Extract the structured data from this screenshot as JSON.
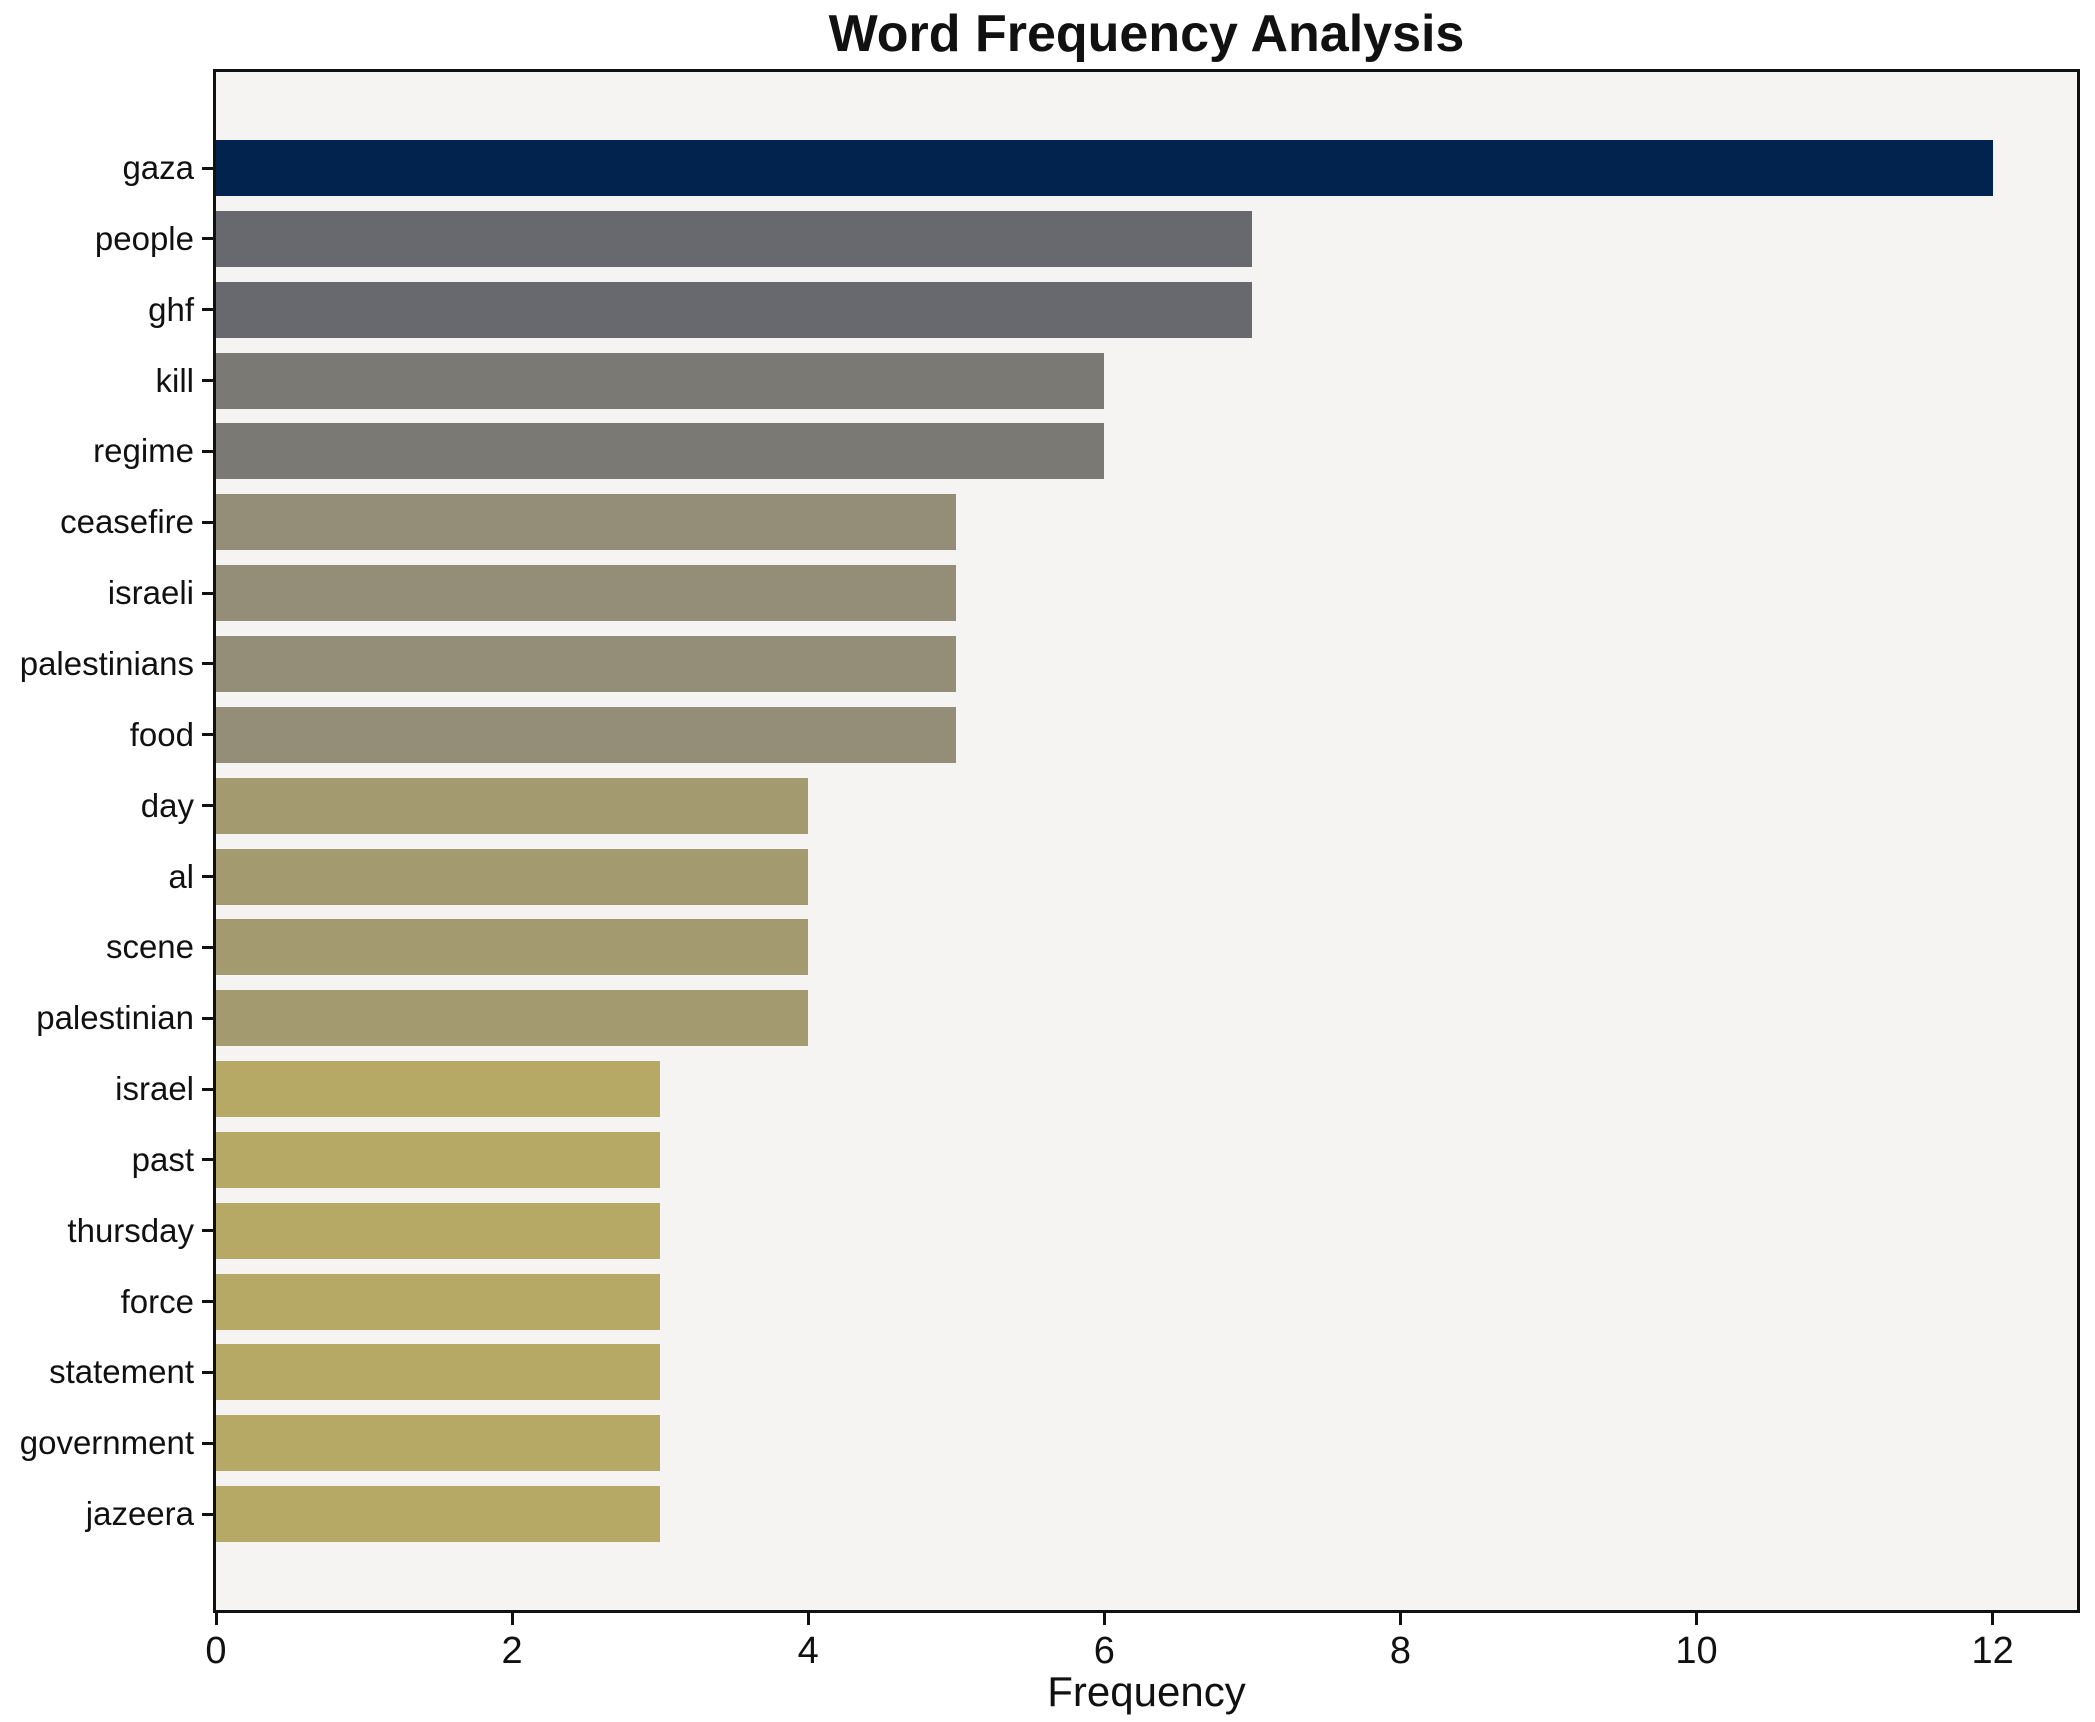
{
  "chart_data": {
    "type": "bar",
    "orientation": "horizontal",
    "title": "Word Frequency Analysis",
    "xlabel": "Frequency",
    "ylabel": "",
    "categories": [
      "gaza",
      "people",
      "ghf",
      "kill",
      "regime",
      "ceasefire",
      "israeli",
      "palestinians",
      "food",
      "day",
      "al",
      "scene",
      "palestinian",
      "israel",
      "past",
      "thursday",
      "force",
      "statement",
      "government",
      "jazeera"
    ],
    "values": [
      12,
      7,
      7,
      6,
      6,
      5,
      5,
      5,
      5,
      4,
      4,
      4,
      4,
      3,
      3,
      3,
      3,
      3,
      3,
      3
    ],
    "bar_colors": [
      "#02234e",
      "#67696f",
      "#67696f",
      "#7a7973",
      "#7a7973",
      "#948d77",
      "#948d77",
      "#948d77",
      "#948d77",
      "#a39a6f",
      "#a39a6f",
      "#a39a6f",
      "#a39a6f",
      "#b6a965",
      "#b6a965",
      "#b6a965",
      "#b6a965",
      "#b6a965",
      "#b6a965",
      "#b6a965"
    ],
    "xticks": [
      0,
      2,
      4,
      6,
      8,
      10,
      12
    ],
    "xlim": [
      0,
      12.57
    ],
    "grid": false,
    "legend_position": "none",
    "plot_background": "#f5f4f2",
    "figure_background": "#ffffff",
    "spine_color": "#111111",
    "text_color": "#111111"
  }
}
